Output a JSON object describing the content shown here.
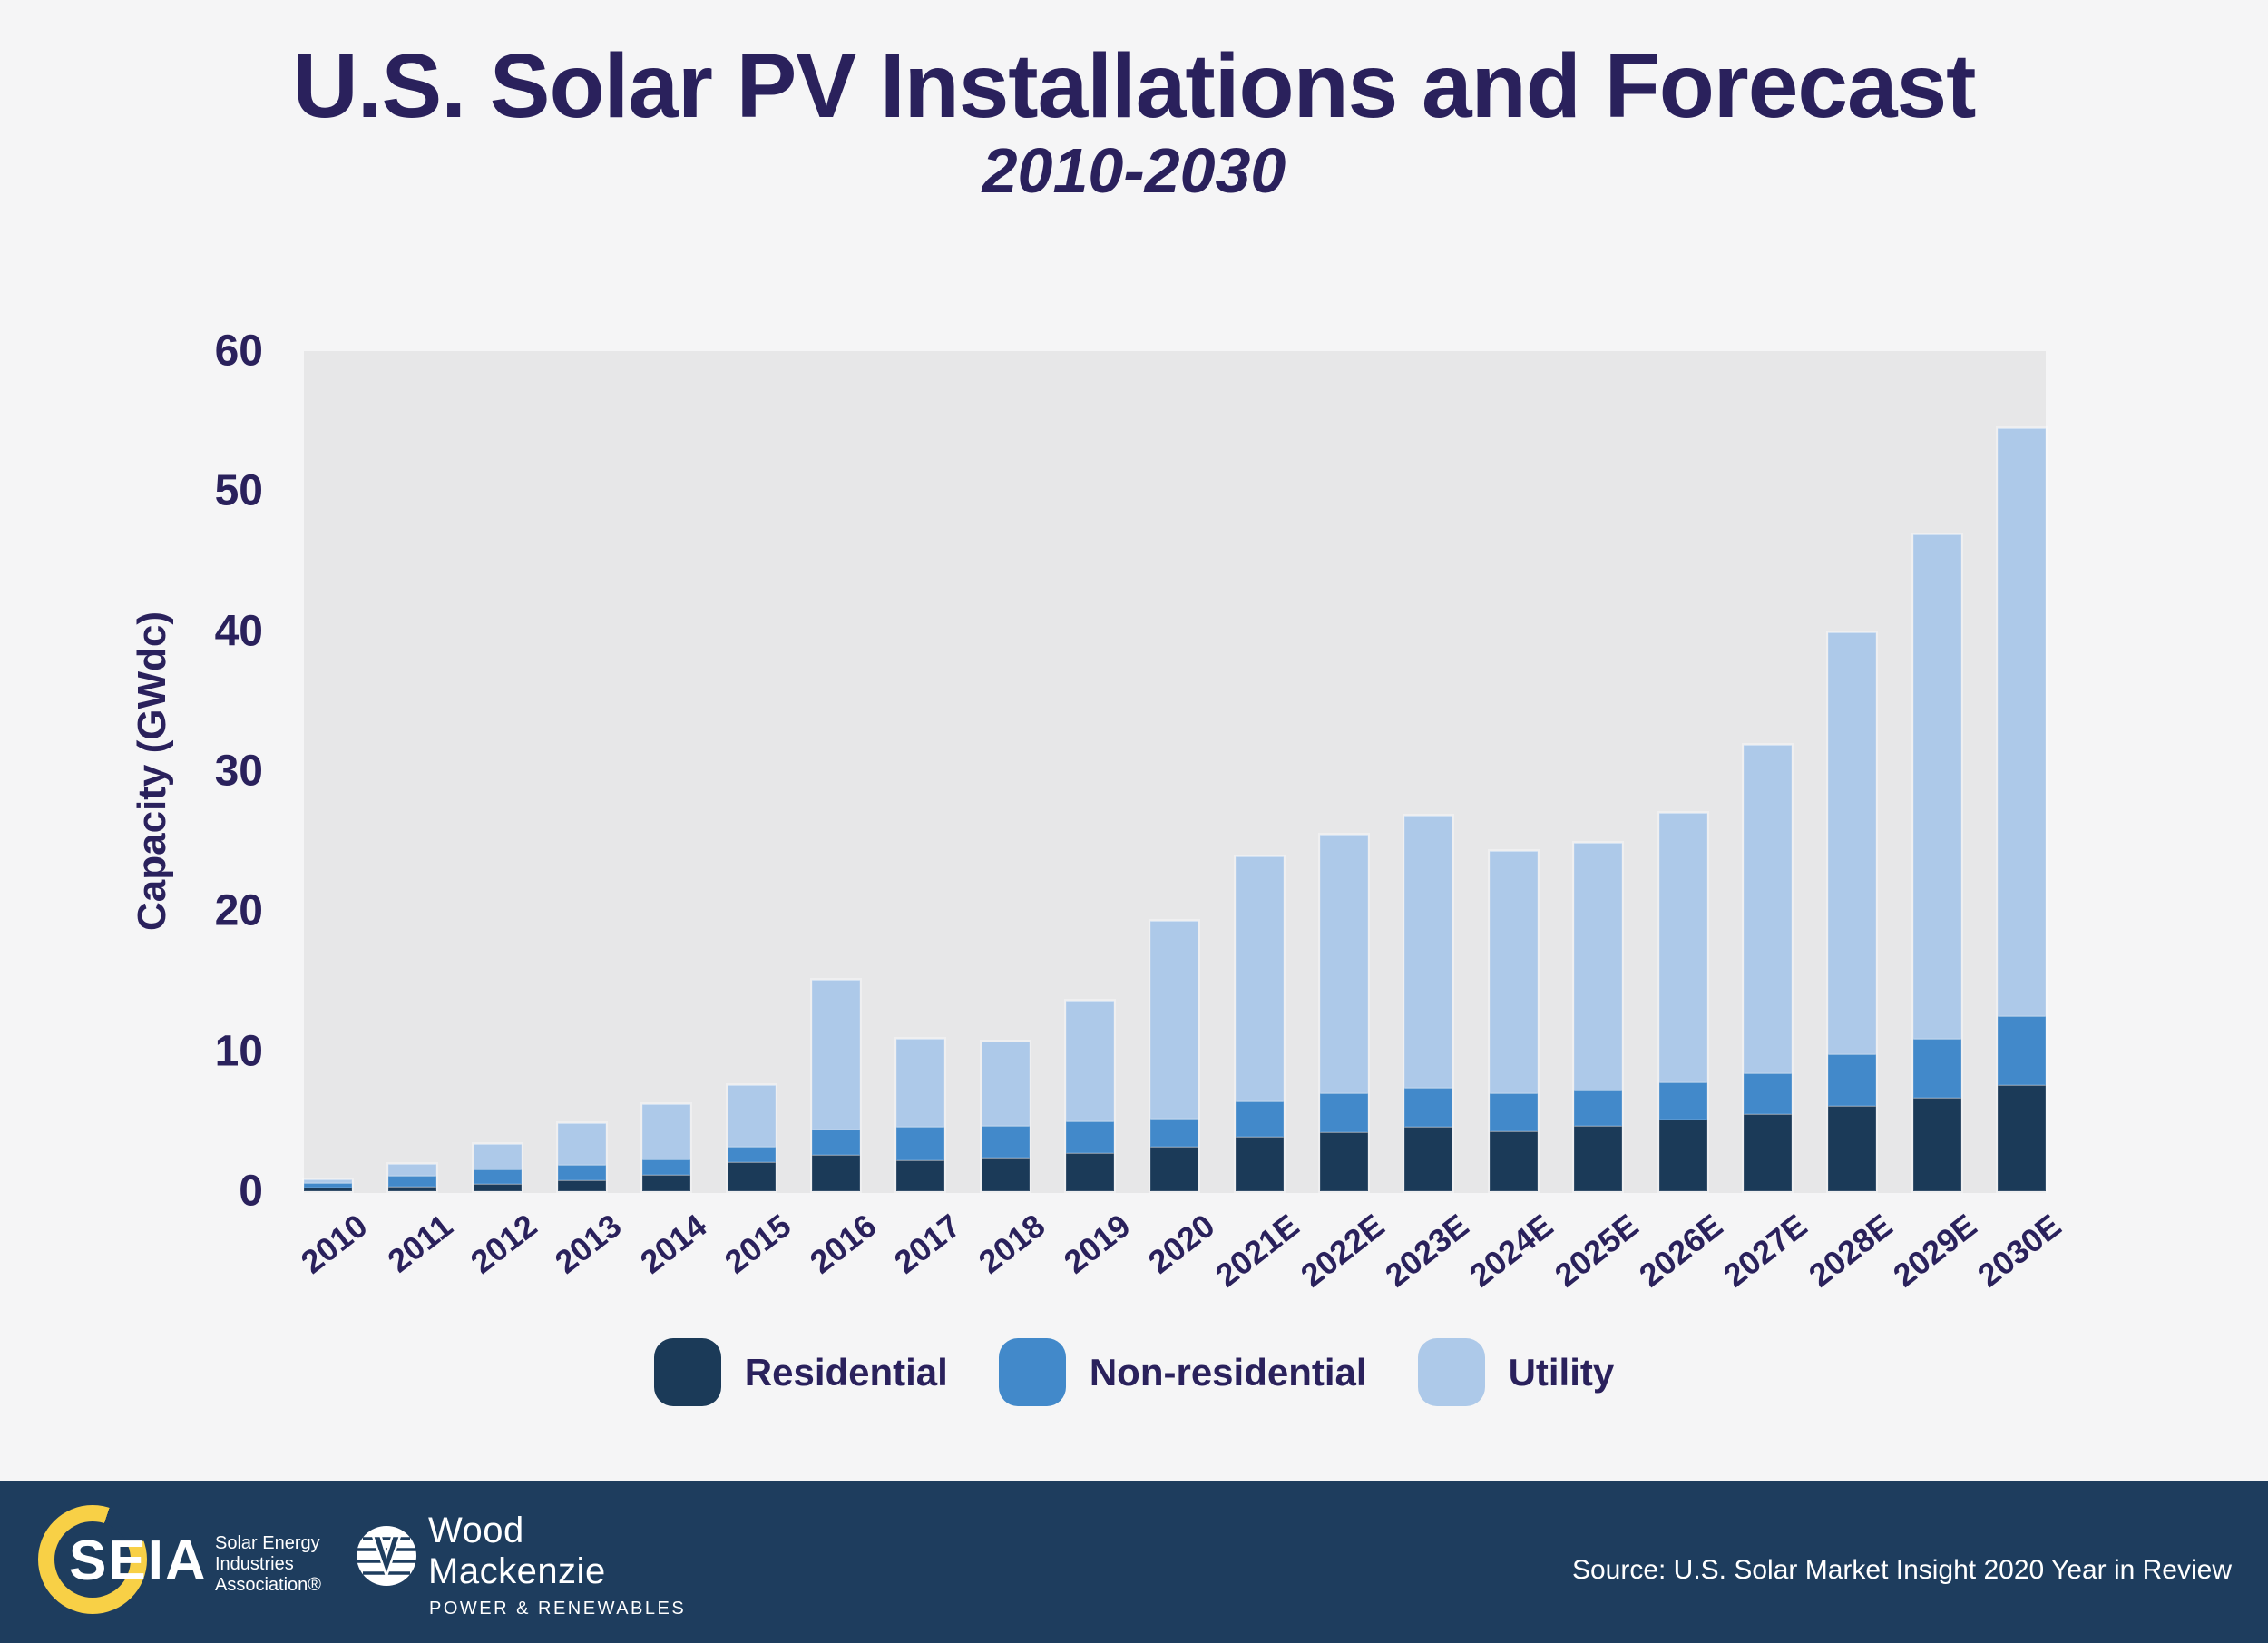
{
  "header": {
    "title": "U.S. Solar PV Installations and Forecast",
    "subtitle": "2010-2030"
  },
  "y_axis": {
    "label": "Capacity (GWdc)",
    "ticks": [
      0,
      10,
      20,
      30,
      40,
      50,
      60
    ]
  },
  "legend": {
    "items": [
      {
        "label": "Residential",
        "color": "#1b3a58"
      },
      {
        "label": "Non-residential",
        "color": "#4289ca"
      },
      {
        "label": "Utility",
        "color": "#adc9e9"
      }
    ]
  },
  "footer": {
    "seia": {
      "wordmark": "SEIA",
      "line1": "Solar Energy",
      "line2": "Industries",
      "line3": "Association®"
    },
    "woodmac": {
      "line1": "Wood",
      "line2": "Mackenzie",
      "tagline": "POWER & RENEWABLES"
    },
    "source": "Source: U.S. Solar Market Insight 2020 Year in Review"
  },
  "chart_data": {
    "type": "bar",
    "stacked": true,
    "title": "U.S. Solar PV Installations and Forecast",
    "subtitle": "2010-2030",
    "xlabel": "",
    "ylabel": "Capacity (GWdc)",
    "ylim": [
      0,
      60
    ],
    "grid": false,
    "legend_position": "bottom",
    "plot_background": "#e7e7e8",
    "categories": [
      "2010",
      "2011",
      "2012",
      "2013",
      "2014",
      "2015",
      "2016",
      "2017",
      "2018",
      "2019",
      "2020",
      "2021E",
      "2022E",
      "2023E",
      "2024E",
      "2025E",
      "2026E",
      "2027E",
      "2028E",
      "2029E",
      "2030E"
    ],
    "series": [
      {
        "name": "Residential",
        "color": "#1b3a58",
        "values": [
          0.25,
          0.3,
          0.5,
          0.8,
          1.2,
          2.1,
          2.6,
          2.2,
          2.4,
          2.7,
          3.2,
          3.9,
          4.2,
          4.6,
          4.3,
          4.7,
          5.1,
          5.5,
          6.1,
          6.7,
          7.6
        ]
      },
      {
        "name": "Non-residential",
        "color": "#4289ca",
        "values": [
          0.33,
          0.83,
          1.05,
          1.1,
          1.05,
          1.1,
          1.8,
          2.4,
          2.3,
          2.3,
          2.0,
          2.5,
          2.8,
          2.8,
          2.7,
          2.5,
          2.7,
          2.9,
          3.7,
          4.2,
          4.9
        ]
      },
      {
        "name": "Utility",
        "color": "#adc9e9",
        "values": [
          0.27,
          0.8,
          1.85,
          2.95,
          4.0,
          4.4,
          10.7,
          6.3,
          6.0,
          8.6,
          14.1,
          17.5,
          18.5,
          19.4,
          17.3,
          17.7,
          19.2,
          23.5,
          30.1,
          36.0,
          42.0
        ]
      }
    ],
    "totals": [
      0.85,
      1.93,
      3.4,
      4.85,
      6.25,
      7.6,
      15.1,
      10.9,
      10.7,
      13.6,
      19.3,
      23.9,
      25.5,
      26.8,
      24.3,
      24.9,
      27.0,
      31.9,
      39.9,
      46.9,
      54.5
    ]
  }
}
